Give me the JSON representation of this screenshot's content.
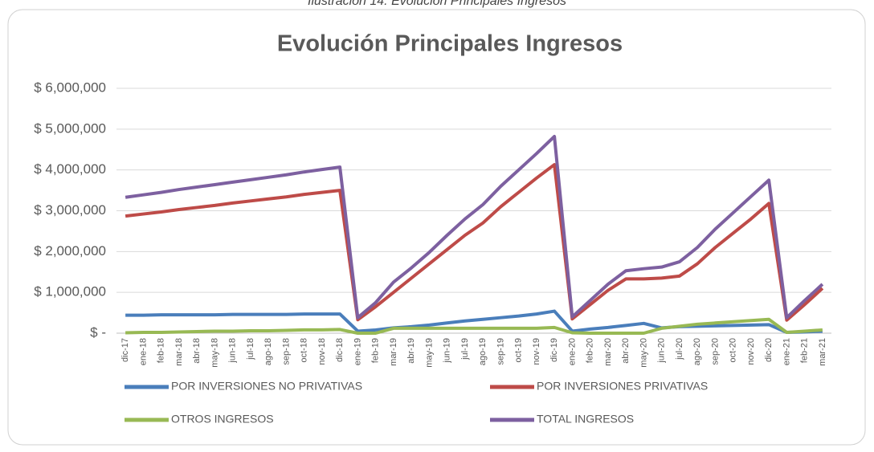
{
  "caption": "Ilustración 14: Evolución Principales Ingresos",
  "chart_data": {
    "type": "line",
    "title": "Evolución Principales Ingresos",
    "categories": [
      "dic-17",
      "ene-18",
      "feb-18",
      "mar-18",
      "abr-18",
      "may-18",
      "jun-18",
      "jul-18",
      "ago-18",
      "sep-18",
      "oct-18",
      "nov-18",
      "dic-18",
      "ene-19",
      "feb-19",
      "mar-19",
      "abr-19",
      "may-19",
      "jun-19",
      "jul-19",
      "ago-19",
      "sep-19",
      "oct-19",
      "nov-19",
      "dic-19",
      "ene-20",
      "feb-20",
      "mar-20",
      "abr-20",
      "may-20",
      "jun-20",
      "jul-20",
      "ago-20",
      "sep-20",
      "oct-20",
      "nov-20",
      "dic-20",
      "ene-21",
      "feb-21",
      "mar-21"
    ],
    "series": [
      {
        "name": "POR INVERSIONES NO PRIVATIVAS",
        "color": "#4a7ebb",
        "values": [
          440000,
          440000,
          450000,
          450000,
          450000,
          450000,
          460000,
          460000,
          460000,
          460000,
          470000,
          470000,
          470000,
          50000,
          80000,
          130000,
          160000,
          200000,
          250000,
          300000,
          340000,
          380000,
          420000,
          470000,
          540000,
          50000,
          100000,
          140000,
          190000,
          240000,
          130000,
          160000,
          170000,
          180000,
          190000,
          200000,
          210000,
          20000,
          30000,
          50000
        ]
      },
      {
        "name": "POR INVERSIONES PRIVATIVAS",
        "color": "#be4b48",
        "values": [
          2870000,
          2920000,
          2970000,
          3030000,
          3080000,
          3130000,
          3190000,
          3240000,
          3290000,
          3340000,
          3400000,
          3450000,
          3500000,
          330000,
          650000,
          1000000,
          1350000,
          1700000,
          2050000,
          2400000,
          2700000,
          3100000,
          3450000,
          3800000,
          4130000,
          350000,
          700000,
          1050000,
          1330000,
          1330000,
          1350000,
          1400000,
          1700000,
          2100000,
          2450000,
          2800000,
          3180000,
          320000,
          700000,
          1100000
        ]
      },
      {
        "name": "OTROS INGRESOS",
        "color": "#98b954",
        "values": [
          10000,
          20000,
          20000,
          30000,
          40000,
          50000,
          50000,
          60000,
          60000,
          70000,
          80000,
          80000,
          90000,
          0,
          0,
          120000,
          120000,
          120000,
          120000,
          120000,
          120000,
          120000,
          120000,
          120000,
          140000,
          10000,
          0,
          0,
          0,
          0,
          120000,
          170000,
          220000,
          250000,
          280000,
          310000,
          340000,
          20000,
          50000,
          80000
        ]
      },
      {
        "name": "TOTAL INGRESOS",
        "color": "#7d60a0",
        "values": [
          3330000,
          3390000,
          3450000,
          3520000,
          3580000,
          3640000,
          3700000,
          3760000,
          3820000,
          3880000,
          3950000,
          4010000,
          4070000,
          380000,
          750000,
          1250000,
          1600000,
          1980000,
          2400000,
          2800000,
          3150000,
          3600000,
          4000000,
          4400000,
          4820000,
          400000,
          800000,
          1200000,
          1530000,
          1580000,
          1620000,
          1750000,
          2100000,
          2550000,
          2950000,
          3350000,
          3750000,
          380000,
          800000,
          1200000
        ]
      }
    ],
    "ylim": [
      0,
      6000000
    ],
    "yticks": [
      {
        "value": 0,
        "label": "$ -"
      },
      {
        "value": 1000000,
        "label": "$ 1,000,000"
      },
      {
        "value": 2000000,
        "label": "$ 2,000,000"
      },
      {
        "value": 3000000,
        "label": "$ 3,000,000"
      },
      {
        "value": 4000000,
        "label": "$ 4,000,000"
      },
      {
        "value": 5000000,
        "label": "$ 5,000,000"
      },
      {
        "value": 6000000,
        "label": "$ 6,000,000"
      }
    ],
    "grid": true,
    "legend": "bottom"
  }
}
